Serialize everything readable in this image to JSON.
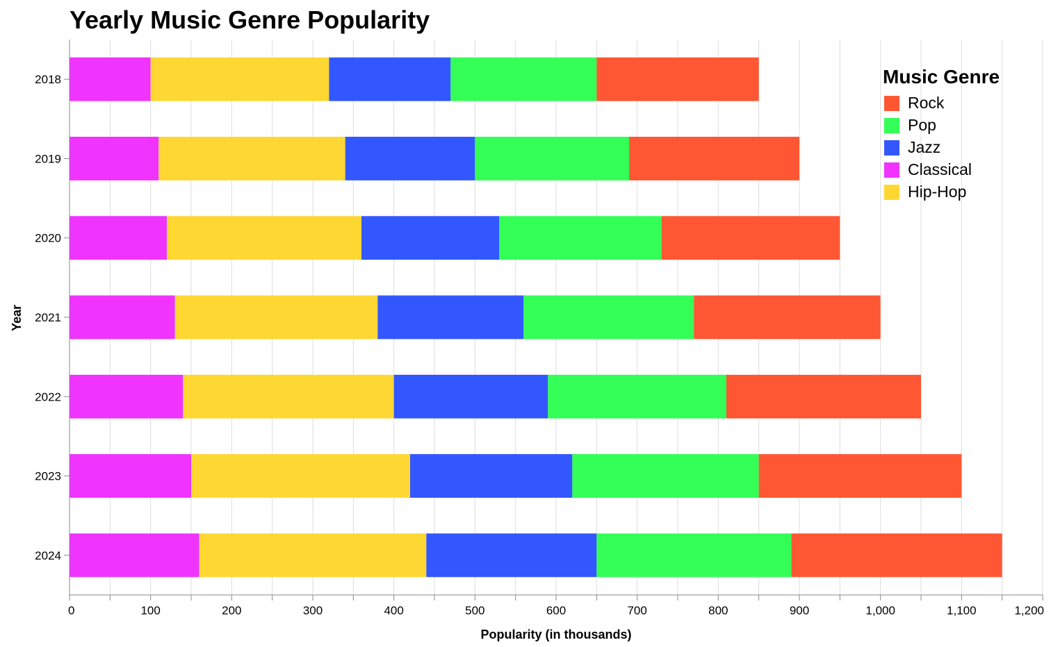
{
  "chart_data": {
    "type": "bar",
    "orientation": "horizontal",
    "stacked": true,
    "title": "Yearly Music Genre Popularity",
    "xlabel": "Popularity (in thousands)",
    "ylabel": "Year",
    "xlim": [
      0,
      1200
    ],
    "x_ticks": [
      0,
      100,
      200,
      300,
      400,
      500,
      600,
      700,
      800,
      900,
      1000,
      1100,
      1200
    ],
    "x_tick_labels": [
      "0",
      "100",
      "200",
      "300",
      "400",
      "500",
      "600",
      "700",
      "800",
      "900",
      "1,000",
      "1,100",
      "1,200"
    ],
    "grid": true,
    "categories": [
      "2018",
      "2019",
      "2020",
      "2021",
      "2022",
      "2023",
      "2024"
    ],
    "stack_order": [
      "Classical",
      "Hip-Hop",
      "Jazz",
      "Pop",
      "Rock"
    ],
    "series": [
      {
        "name": "Rock",
        "color": "#ff5733",
        "values": [
          200,
          210,
          220,
          230,
          240,
          250,
          260
        ]
      },
      {
        "name": "Pop",
        "color": "#33ff57",
        "values": [
          180,
          190,
          200,
          210,
          220,
          230,
          240
        ]
      },
      {
        "name": "Jazz",
        "color": "#3357ff",
        "values": [
          150,
          160,
          170,
          180,
          190,
          200,
          210
        ]
      },
      {
        "name": "Classical",
        "color": "#f033ff",
        "values": [
          100,
          110,
          120,
          130,
          140,
          150,
          160
        ]
      },
      {
        "name": "Hip-Hop",
        "color": "#ffd733",
        "values": [
          220,
          230,
          240,
          250,
          260,
          270,
          280
        ]
      }
    ],
    "legend": {
      "title": "Music Genre",
      "position": "top-right"
    }
  }
}
